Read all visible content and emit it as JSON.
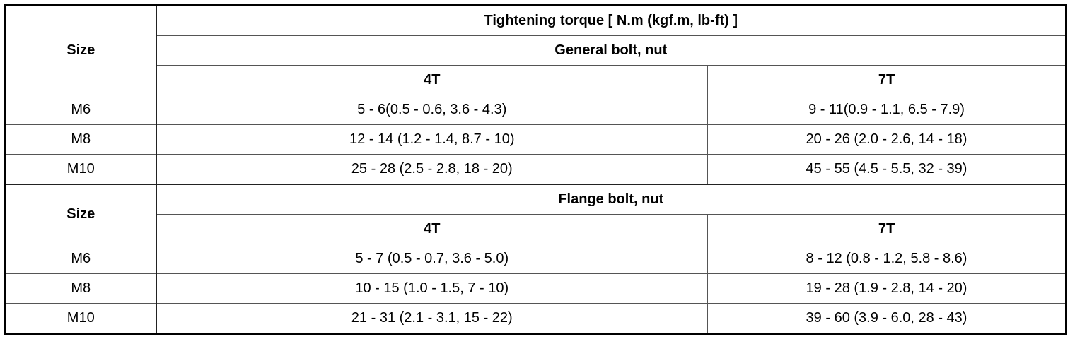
{
  "table": {
    "title": "Tightening torque [ N.m (kgf.m, lb-ft) ]",
    "sections": [
      {
        "size_label": "Size",
        "name": "General bolt, nut",
        "columns": [
          "4T",
          "7T"
        ],
        "rows": [
          [
            "M6",
            "5 - 6(0.5 - 0.6, 3.6 - 4.3)",
            "9 - 11(0.9 - 1.1, 6.5 - 7.9)"
          ],
          [
            "M8",
            "12 - 14 (1.2 - 1.4, 8.7 - 10)",
            "20 - 26 (2.0 - 2.6, 14 - 18)"
          ],
          [
            "M10",
            "25 - 28 (2.5 - 2.8, 18 - 20)",
            "45 - 55 (4.5 - 5.5, 32 - 39)"
          ]
        ]
      },
      {
        "size_label": "Size",
        "name": "Flange bolt, nut",
        "columns": [
          "4T",
          "7T"
        ],
        "rows": [
          [
            "M6",
            "5 - 7 (0.5 - 0.7, 3.6 - 5.0)",
            "8 - 12 (0.8 - 1.2, 5.8 - 8.6)"
          ],
          [
            "M8",
            "10 - 15 (1.0 - 1.5, 7 - 10)",
            "19 - 28 (1.9 - 2.8, 14 - 20)"
          ],
          [
            "M10",
            "21 - 31 (2.1 - 3.1, 15 - 22)",
            "39 - 60 (3.9 - 6.0, 28 - 43)"
          ]
        ]
      }
    ]
  }
}
